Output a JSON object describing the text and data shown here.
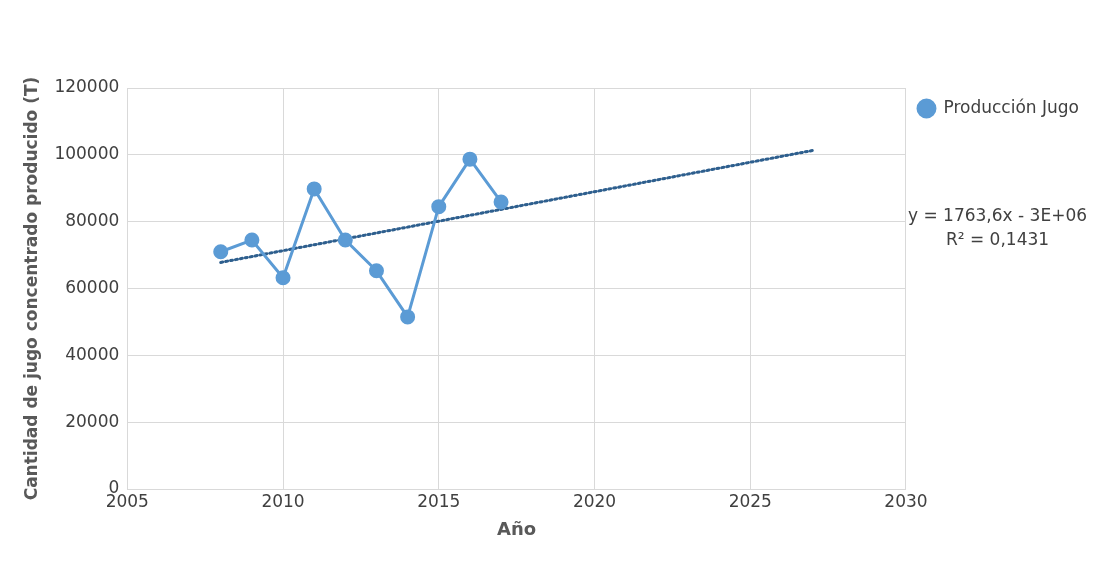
{
  "chart_data": {
    "type": "line",
    "xlabel": "Año",
    "ylabel": "Cantidad de jugo concentrado producido (T)",
    "xlim": [
      2005,
      2030
    ],
    "xticks": [
      2005,
      2010,
      2015,
      2020,
      2025,
      2030
    ],
    "ylim": [
      0,
      120000
    ],
    "yticks": [
      0,
      20000,
      40000,
      60000,
      80000,
      100000,
      120000
    ],
    "grid": true,
    "legend": "right",
    "marker": "circle",
    "series": [
      {
        "name": "Producción Jugo",
        "color": "#5b9bd5",
        "x": [
          2008,
          2009,
          2010,
          2011,
          2012,
          2013,
          2014,
          2015,
          2016,
          2017
        ],
        "values": [
          71000,
          74500,
          63200,
          89800,
          74500,
          65300,
          51500,
          84500,
          98700,
          85900
        ]
      },
      {
        "type": "line",
        "color": "#2e5f8e",
        "line_style": "dotted",
        "marker": "none",
        "x": [
          2008,
          2027
        ],
        "values": [
          67800,
          101300
        ]
      }
    ],
    "annotations": [
      "y = 1763,6x - 3E+06",
      "R² = 0,1431"
    ]
  }
}
